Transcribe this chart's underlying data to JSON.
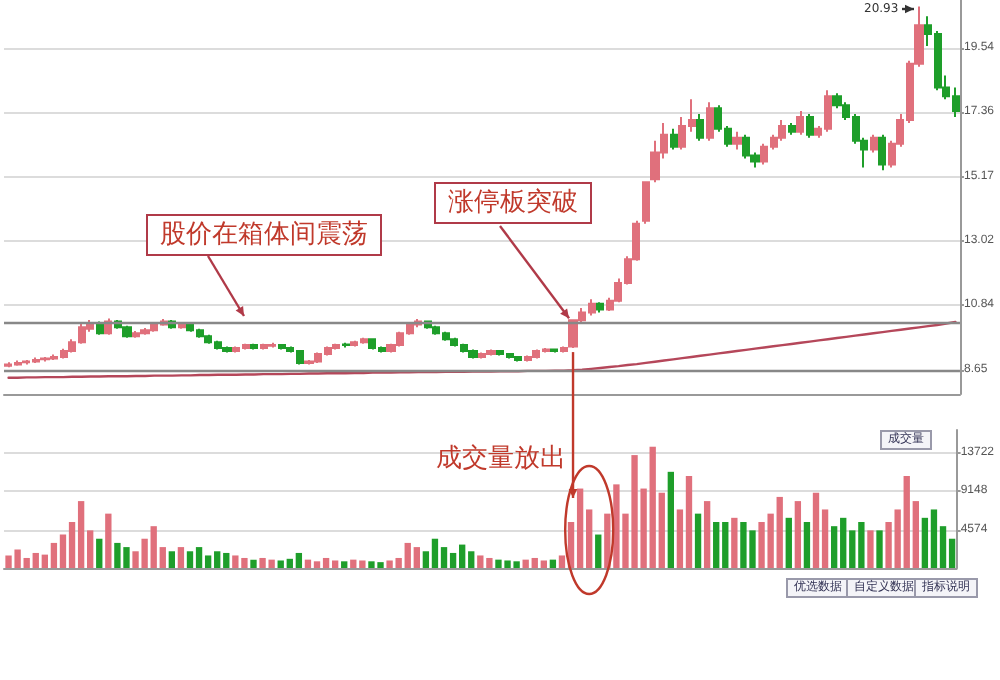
{
  "chart_data": [
    {
      "type": "candlestick",
      "categories": [
        null,
        null,
        null,
        null,
        null,
        null,
        null,
        null,
        null,
        null,
        null,
        null,
        null,
        null,
        null,
        null,
        null,
        null,
        null,
        null,
        null,
        null,
        null,
        null,
        null,
        null,
        null,
        null,
        null,
        null,
        null,
        null,
        null,
        null,
        null,
        null,
        null,
        null,
        null,
        null,
        null,
        null,
        null,
        null,
        null,
        null,
        null,
        null,
        null,
        null,
        null,
        null,
        null,
        null,
        null,
        null,
        null,
        null,
        null,
        null,
        null,
        null,
        null,
        null,
        null,
        null,
        null,
        null,
        null,
        null,
        null,
        null,
        null,
        null,
        null,
        null,
        null,
        null,
        null,
        null,
        null,
        null,
        null,
        null,
        null,
        null,
        null,
        null,
        null,
        null,
        null,
        null,
        null,
        null,
        null,
        null,
        null,
        null,
        null,
        null,
        null,
        null,
        null,
        null,
        null
      ],
      "ohlc": [
        [
          8.8,
          8.92,
          8.75,
          8.85
        ],
        [
          8.85,
          8.98,
          8.8,
          8.9
        ],
        [
          8.92,
          9.0,
          8.85,
          8.95
        ],
        [
          8.95,
          9.08,
          8.9,
          9.0
        ],
        [
          9.02,
          9.1,
          8.95,
          9.05
        ],
        [
          9.05,
          9.18,
          9.0,
          9.1
        ],
        [
          9.1,
          9.38,
          9.05,
          9.3
        ],
        [
          9.3,
          9.7,
          9.25,
          9.6
        ],
        [
          9.6,
          10.25,
          9.55,
          10.1
        ],
        [
          10.05,
          10.35,
          9.95,
          10.2
        ],
        [
          10.2,
          10.3,
          9.85,
          9.9
        ],
        [
          9.9,
          10.4,
          9.85,
          10.3
        ],
        [
          10.3,
          10.35,
          10.05,
          10.1
        ],
        [
          10.1,
          10.15,
          9.75,
          9.8
        ],
        [
          9.8,
          9.98,
          9.75,
          9.9
        ],
        [
          9.9,
          10.08,
          9.85,
          10.0
        ],
        [
          10.0,
          10.28,
          9.95,
          10.2
        ],
        [
          10.2,
          10.38,
          10.15,
          10.3
        ],
        [
          10.3,
          10.35,
          10.05,
          10.1
        ],
        [
          10.1,
          10.28,
          10.05,
          10.2
        ],
        [
          10.2,
          10.25,
          9.95,
          10.0
        ],
        [
          10.0,
          10.05,
          9.75,
          9.8
        ],
        [
          9.8,
          9.85,
          9.55,
          9.6
        ],
        [
          9.6,
          9.65,
          9.35,
          9.4
        ],
        [
          9.4,
          9.45,
          9.25,
          9.3
        ],
        [
          9.3,
          9.45,
          9.25,
          9.4
        ],
        [
          9.4,
          9.55,
          9.35,
          9.5
        ],
        [
          9.5,
          9.55,
          9.35,
          9.4
        ],
        [
          9.4,
          9.55,
          9.35,
          9.5
        ],
        [
          9.48,
          9.58,
          9.42,
          9.5
        ],
        [
          9.5,
          9.52,
          9.35,
          9.4
        ],
        [
          9.4,
          9.45,
          9.25,
          9.3
        ],
        [
          9.3,
          9.32,
          8.85,
          8.9
        ],
        [
          8.9,
          9.0,
          8.85,
          8.95
        ],
        [
          8.95,
          9.25,
          8.9,
          9.2
        ],
        [
          9.2,
          9.45,
          9.15,
          9.4
        ],
        [
          9.4,
          9.55,
          9.35,
          9.5
        ],
        [
          9.52,
          9.58,
          9.42,
          9.5
        ],
        [
          9.5,
          9.65,
          9.45,
          9.6
        ],
        [
          9.6,
          9.75,
          9.55,
          9.7
        ],
        [
          9.7,
          9.72,
          9.35,
          9.4
        ],
        [
          9.4,
          9.45,
          9.25,
          9.3
        ],
        [
          9.3,
          9.55,
          9.25,
          9.5
        ],
        [
          9.5,
          9.95,
          9.45,
          9.9
        ],
        [
          9.9,
          10.28,
          9.85,
          10.2
        ],
        [
          10.2,
          10.38,
          10.1,
          10.3
        ],
        [
          10.3,
          10.32,
          10.05,
          10.1
        ],
        [
          10.1,
          10.15,
          9.85,
          9.9
        ],
        [
          9.9,
          9.95,
          9.65,
          9.7
        ],
        [
          9.7,
          9.75,
          9.45,
          9.5
        ],
        [
          9.5,
          9.55,
          9.25,
          9.3
        ],
        [
          9.3,
          9.35,
          9.05,
          9.1
        ],
        [
          9.1,
          9.25,
          9.05,
          9.2
        ],
        [
          9.2,
          9.35,
          9.15,
          9.3
        ],
        [
          9.3,
          9.32,
          9.15,
          9.2
        ],
        [
          9.2,
          9.22,
          9.05,
          9.1
        ],
        [
          9.1,
          9.12,
          8.95,
          9.0
        ],
        [
          9.0,
          9.15,
          8.95,
          9.1
        ],
        [
          9.1,
          9.35,
          9.05,
          9.3
        ],
        [
          9.3,
          9.4,
          9.25,
          9.35
        ],
        [
          9.35,
          9.38,
          9.25,
          9.3
        ],
        [
          9.3,
          9.45,
          9.25,
          9.4
        ],
        [
          9.45,
          10.34,
          9.4,
          10.34
        ],
        [
          10.34,
          10.75,
          10.25,
          10.6
        ],
        [
          10.6,
          11.05,
          10.5,
          10.9
        ],
        [
          10.9,
          10.95,
          10.6,
          10.7
        ],
        [
          10.7,
          11.1,
          10.65,
          11.0
        ],
        [
          11.0,
          11.75,
          10.95,
          11.6
        ],
        [
          11.6,
          12.5,
          11.55,
          12.4
        ],
        [
          12.4,
          13.7,
          12.35,
          13.6
        ],
        [
          13.7,
          15.0,
          13.6,
          15.0
        ],
        [
          15.1,
          16.4,
          15.0,
          16.0
        ],
        [
          16.0,
          17.0,
          15.8,
          16.6
        ],
        [
          16.6,
          16.8,
          16.1,
          16.2
        ],
        [
          16.2,
          17.2,
          16.1,
          16.9
        ],
        [
          16.9,
          17.8,
          16.7,
          17.1
        ],
        [
          17.1,
          17.3,
          16.4,
          16.5
        ],
        [
          16.5,
          17.7,
          16.4,
          17.5
        ],
        [
          17.5,
          17.6,
          16.7,
          16.8
        ],
        [
          16.8,
          16.9,
          16.2,
          16.3
        ],
        [
          16.3,
          16.7,
          16.1,
          16.5
        ],
        [
          16.5,
          16.6,
          15.8,
          15.9
        ],
        [
          15.9,
          16.0,
          15.5,
          15.7
        ],
        [
          15.7,
          16.3,
          15.6,
          16.2
        ],
        [
          16.2,
          16.6,
          16.1,
          16.5
        ],
        [
          16.5,
          17.1,
          16.4,
          16.9
        ],
        [
          16.9,
          17.0,
          16.6,
          16.7
        ],
        [
          16.7,
          17.4,
          16.6,
          17.2
        ],
        [
          17.2,
          17.3,
          16.5,
          16.6
        ],
        [
          16.6,
          16.9,
          16.5,
          16.8
        ],
        [
          16.8,
          18.1,
          16.7,
          17.9
        ],
        [
          17.9,
          18.0,
          17.5,
          17.6
        ],
        [
          17.6,
          17.7,
          17.1,
          17.2
        ],
        [
          17.2,
          17.3,
          16.3,
          16.4
        ],
        [
          16.4,
          16.5,
          15.5,
          16.1
        ],
        [
          16.1,
          16.6,
          16.0,
          16.5
        ],
        [
          16.5,
          16.6,
          15.4,
          15.6
        ],
        [
          15.6,
          16.4,
          15.5,
          16.3
        ],
        [
          16.3,
          17.3,
          16.2,
          17.1
        ],
        [
          17.1,
          19.1,
          17.0,
          19.0
        ],
        [
          19.0,
          20.93,
          18.9,
          20.3
        ],
        [
          20.3,
          20.6,
          19.6,
          20.0
        ],
        [
          20.0,
          20.1,
          18.1,
          18.2
        ],
        [
          18.2,
          18.6,
          17.8,
          17.9
        ],
        [
          17.9,
          18.2,
          17.2,
          17.4
        ]
      ],
      "colors": [
        "#e0707c",
        "#e0707c",
        "#e0707c",
        "#e0707c",
        "#e0707c",
        "#e0707c",
        "#e0707c",
        "#e0707c",
        "#e0707c",
        "#e0707c",
        "#1e9e2a",
        "#e0707c",
        "#1e9e2a",
        "#1e9e2a",
        "#e0707c",
        "#e0707c",
        "#e0707c",
        "#e0707c",
        "#1e9e2a",
        "#e0707c",
        "#1e9e2a",
        "#1e9e2a",
        "#1e9e2a",
        "#1e9e2a",
        "#1e9e2a",
        "#e0707c",
        "#e0707c",
        "#1e9e2a",
        "#e0707c",
        "#e0707c",
        "#1e9e2a",
        "#1e9e2a",
        "#1e9e2a",
        "#e0707c",
        "#e0707c",
        "#e0707c",
        "#e0707c",
        "#1e9e2a",
        "#e0707c",
        "#e0707c",
        "#1e9e2a",
        "#1e9e2a",
        "#e0707c",
        "#e0707c",
        "#e0707c",
        "#e0707c",
        "#1e9e2a",
        "#1e9e2a",
        "#1e9e2a",
        "#1e9e2a",
        "#1e9e2a",
        "#1e9e2a",
        "#e0707c",
        "#e0707c",
        "#1e9e2a",
        "#1e9e2a",
        "#1e9e2a",
        "#e0707c",
        "#e0707c",
        "#e0707c",
        "#1e9e2a",
        "#e0707c",
        "#e0707c",
        "#e0707c",
        "#e0707c",
        "#1e9e2a",
        "#e0707c",
        "#e0707c",
        "#e0707c",
        "#e0707c",
        "#e0707c",
        "#e0707c",
        "#e0707c",
        "#1e9e2a",
        "#e0707c",
        "#e0707c",
        "#1e9e2a",
        "#e0707c",
        "#1e9e2a",
        "#1e9e2a",
        "#e0707c",
        "#1e9e2a",
        "#1e9e2a",
        "#e0707c",
        "#e0707c",
        "#e0707c",
        "#1e9e2a",
        "#e0707c",
        "#1e9e2a",
        "#e0707c",
        "#e0707c",
        "#1e9e2a",
        "#1e9e2a",
        "#1e9e2a",
        "#1e9e2a",
        "#e0707c",
        "#1e9e2a",
        "#e0707c",
        "#e0707c",
        "#e0707c",
        "#e0707c",
        "#1e9e2a",
        "#1e9e2a",
        "#1e9e2a",
        "#1e9e2a"
      ],
      "series": [
        {
          "type": "line",
          "color": "#b5475a",
          "values": [
            8.4,
            8.4,
            8.41,
            8.41,
            8.42,
            8.42,
            8.42,
            8.43,
            8.43,
            8.44,
            8.44,
            8.45,
            8.45,
            8.45,
            8.46,
            8.46,
            8.47,
            8.47,
            8.47,
            8.48,
            8.48,
            8.49,
            8.49,
            8.5,
            8.5,
            8.5,
            8.51,
            8.51,
            8.52,
            8.52,
            8.52,
            8.53,
            8.53,
            8.54,
            8.54,
            8.55,
            8.55,
            8.55,
            8.56,
            8.56,
            8.57,
            8.57,
            8.57,
            8.58,
            8.58,
            8.59,
            8.59,
            8.59,
            8.6,
            8.6,
            8.6,
            8.61,
            8.61,
            8.61,
            8.62,
            8.62,
            8.62,
            8.63,
            8.63,
            8.63,
            8.64,
            8.64,
            8.65,
            8.67,
            8.7,
            8.73,
            8.76,
            8.79,
            8.83,
            8.86,
            8.9,
            8.94,
            8.98,
            9.02,
            9.06,
            9.1,
            9.14,
            9.18,
            9.22,
            9.26,
            9.3,
            9.34,
            9.38,
            9.42,
            9.46,
            9.5,
            9.54,
            9.58,
            9.62,
            9.66,
            9.7,
            9.74,
            9.78,
            9.82,
            9.86,
            9.9,
            9.94,
            9.98,
            10.02,
            10.06,
            10.1,
            10.14,
            10.18,
            10.23,
            10.28
          ]
        }
      ],
      "marker": "none",
      "line_style": "solid",
      "ylim": [
        7.85,
        21.15
      ],
      "yticks": [
        8.65,
        10.84,
        13.02,
        15.17,
        17.36,
        19.54
      ],
      "grid": "y",
      "ref_lines": [
        {
          "axis": "y",
          "value": 10.28,
          "color": "#888888"
        },
        {
          "axis": "y",
          "value": 8.65,
          "color": "#888888"
        }
      ],
      "annotations": [
        "股价在箱体间震荡",
        "涨停板突破",
        "20.93"
      ]
    },
    {
      "type": "bar",
      "categories": [
        null,
        null,
        null,
        null,
        null,
        null,
        null,
        null,
        null,
        null,
        null,
        null,
        null,
        null,
        null,
        null,
        null,
        null,
        null,
        null,
        null,
        null,
        null,
        null,
        null,
        null,
        null,
        null,
        null,
        null,
        null,
        null,
        null,
        null,
        null,
        null,
        null,
        null,
        null,
        null,
        null,
        null,
        null,
        null,
        null,
        null,
        null,
        null,
        null,
        null,
        null,
        null,
        null,
        null,
        null,
        null,
        null,
        null,
        null,
        null,
        null,
        null,
        null,
        null,
        null,
        null,
        null,
        null,
        null,
        null,
        null,
        null,
        null,
        null,
        null,
        null,
        null,
        null,
        null,
        null,
        null,
        null,
        null,
        null,
        null,
        null,
        null,
        null,
        null,
        null,
        null,
        null,
        null,
        null,
        null,
        null,
        null,
        null,
        null,
        null,
        null,
        null,
        null,
        null,
        null
      ],
      "values": [
        1500,
        2200,
        1200,
        1800,
        1600,
        3000,
        4000,
        5500,
        8000,
        4500,
        3500,
        6500,
        3000,
        2500,
        2000,
        3500,
        5000,
        2500,
        2000,
        2500,
        2000,
        2500,
        1500,
        2000,
        1800,
        1500,
        1200,
        1000,
        1200,
        1000,
        900,
        1100,
        1800,
        1000,
        800,
        1200,
        900,
        800,
        1000,
        900,
        800,
        700,
        900,
        1200,
        3000,
        2500,
        2000,
        3500,
        2500,
        1800,
        2800,
        2000,
        1500,
        1200,
        1000,
        900,
        800,
        1000,
        1200,
        900,
        1000,
        1500,
        5500,
        9500,
        7000,
        4000,
        6500,
        10000,
        6500,
        13500,
        9500,
        14500,
        9000,
        11500,
        7000,
        11000,
        6500,
        8000,
        5500,
        5500,
        6000,
        5500,
        4500,
        5500,
        6500,
        8500,
        6000,
        8000,
        5500,
        9000,
        7000,
        5000,
        6000,
        4500,
        5500,
        4500,
        4500,
        5500,
        7000,
        11000,
        8000,
        6000,
        7000,
        5000,
        3500
      ],
      "colors": [
        "#e0707c",
        "#e0707c",
        "#e0707c",
        "#e0707c",
        "#e0707c",
        "#e0707c",
        "#e0707c",
        "#e0707c",
        "#e0707c",
        "#e0707c",
        "#1e9e2a",
        "#e0707c",
        "#1e9e2a",
        "#1e9e2a",
        "#e0707c",
        "#e0707c",
        "#e0707c",
        "#e0707c",
        "#1e9e2a",
        "#e0707c",
        "#1e9e2a",
        "#1e9e2a",
        "#1e9e2a",
        "#1e9e2a",
        "#1e9e2a",
        "#e0707c",
        "#e0707c",
        "#1e9e2a",
        "#e0707c",
        "#e0707c",
        "#1e9e2a",
        "#1e9e2a",
        "#1e9e2a",
        "#e0707c",
        "#e0707c",
        "#e0707c",
        "#e0707c",
        "#1e9e2a",
        "#e0707c",
        "#e0707c",
        "#1e9e2a",
        "#1e9e2a",
        "#e0707c",
        "#e0707c",
        "#e0707c",
        "#e0707c",
        "#1e9e2a",
        "#1e9e2a",
        "#1e9e2a",
        "#1e9e2a",
        "#1e9e2a",
        "#1e9e2a",
        "#e0707c",
        "#e0707c",
        "#1e9e2a",
        "#1e9e2a",
        "#1e9e2a",
        "#e0707c",
        "#e0707c",
        "#e0707c",
        "#1e9e2a",
        "#e0707c",
        "#e0707c",
        "#e0707c",
        "#e0707c",
        "#1e9e2a",
        "#e0707c",
        "#e0707c",
        "#e0707c",
        "#e0707c",
        "#e0707c",
        "#e0707c",
        "#e0707c",
        "#1e9e2a",
        "#e0707c",
        "#e0707c",
        "#1e9e2a",
        "#e0707c",
        "#1e9e2a",
        "#1e9e2a",
        "#e0707c",
        "#1e9e2a",
        "#1e9e2a",
        "#e0707c",
        "#e0707c",
        "#e0707c",
        "#1e9e2a",
        "#e0707c",
        "#1e9e2a",
        "#e0707c",
        "#e0707c",
        "#1e9e2a",
        "#1e9e2a",
        "#1e9e2a",
        "#1e9e2a",
        "#e0707c",
        "#1e9e2a",
        "#e0707c",
        "#e0707c",
        "#e0707c",
        "#e0707c",
        "#1e9e2a",
        "#1e9e2a",
        "#1e9e2a",
        "#1e9e2a"
      ],
      "ylim": [
        0,
        16500
      ],
      "yticks": [
        4574,
        9148,
        13722
      ],
      "grid": "y",
      "annotations": [
        "成交量放出",
        "成交量",
        "优选数据",
        "自定义数据",
        "指标说明"
      ]
    }
  ]
}
